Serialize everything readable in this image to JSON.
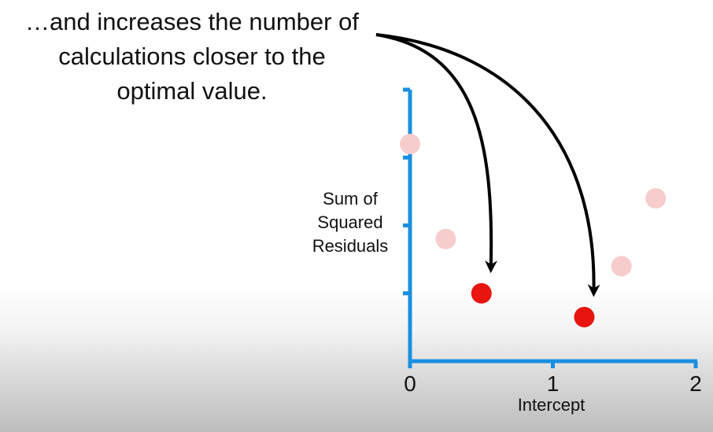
{
  "annotation": {
    "lines": [
      "…and increases the number of",
      "calculations closer to the",
      "optimal value."
    ]
  },
  "colors": {
    "axis": "#1a8fe0",
    "faded_point": "#f7cccc",
    "highlight_point": "#e8140e",
    "arrow": "#000000"
  },
  "chart_data": {
    "type": "scatter",
    "xlabel": "Intercept",
    "ylabel_lines": [
      "Sum of",
      "Squared",
      "Residuals"
    ],
    "xlim": [
      0,
      2
    ],
    "ylim": [
      0,
      4
    ],
    "x_ticks": [
      0,
      1,
      2
    ],
    "y_ticks": [
      1,
      2,
      3,
      4
    ],
    "y_tick_labels_shown": false,
    "grid": false,
    "series": [
      {
        "style": "faded",
        "points": [
          {
            "x": 0.0,
            "y": 3.2
          },
          {
            "x": 0.25,
            "y": 1.8
          },
          {
            "x": 1.48,
            "y": 1.4
          },
          {
            "x": 1.72,
            "y": 2.4
          }
        ]
      },
      {
        "style": "highlight",
        "points": [
          {
            "x": 0.5,
            "y": 1.0
          },
          {
            "x": 1.22,
            "y": 0.65
          }
        ]
      }
    ],
    "arrows": [
      {
        "to_point": 0
      },
      {
        "to_point": 1
      }
    ]
  }
}
